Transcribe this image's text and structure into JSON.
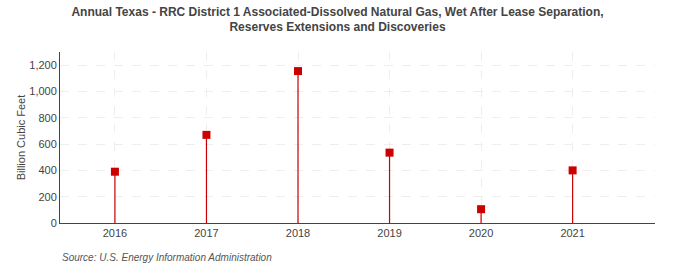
{
  "chart_data": {
    "type": "lollipop",
    "title": "Annual Texas - RRC District 1 Associated-Dissolved Natural Gas, Wet After Lease Separation,",
    "subtitle": "Reserves Extensions and Discoveries",
    "ylabel": "Billion Cubic Feet",
    "annotations": [
      "Source: U.S. Energy Information Administration"
    ],
    "x": [
      2016,
      2017,
      2018,
      2019,
      2020,
      2021
    ],
    "values": [
      390,
      670,
      1155,
      535,
      105,
      400
    ],
    "color": "#cc0000",
    "marker": "square",
    "xlim": [
      2015.4,
      2021.9
    ],
    "xticks": [
      2016,
      2017,
      2018,
      2019,
      2020,
      2021
    ],
    "ylim": [
      0,
      1300
    ],
    "yticks": [
      0,
      200,
      400,
      600,
      800,
      {
        "value": 1000,
        "label": "1,000"
      },
      {
        "value": 1200,
        "label": "1,200"
      }
    ],
    "grid": true
  }
}
